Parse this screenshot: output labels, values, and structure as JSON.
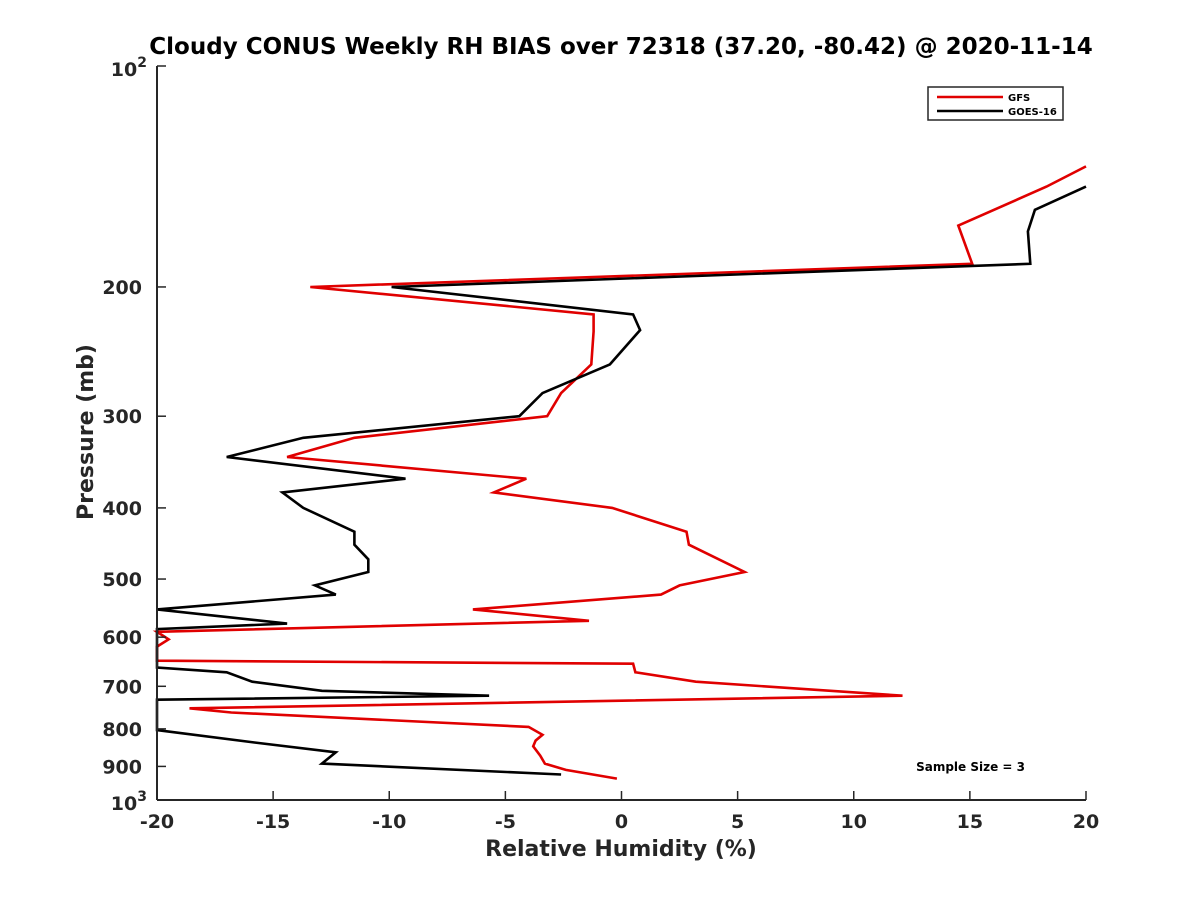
{
  "chart_data": {
    "type": "line",
    "title": "Cloudy CONUS Weekly RH BIAS over 72318 (37.20, -80.42) @ 2020-11-14",
    "xlabel": "Relative Humidity (%)",
    "ylabel": "Pressure (mb)",
    "xlim": [
      -20,
      20
    ],
    "ylim": [
      100,
      1000
    ],
    "yscale": "log",
    "y_reversed": true,
    "x_ticks": [
      "-20",
      "-15",
      "-10",
      "-5",
      "0",
      "5",
      "10",
      "15",
      "20"
    ],
    "x_tick_values": [
      -20,
      -15,
      -10,
      -5,
      0,
      5,
      10,
      15,
      20
    ],
    "y_ticks": [
      {
        "value": 200,
        "label": "200"
      },
      {
        "value": 300,
        "label": "300"
      },
      {
        "value": 400,
        "label": "400"
      },
      {
        "value": 500,
        "label": "500"
      },
      {
        "value": 600,
        "label": "600"
      },
      {
        "value": 700,
        "label": "700"
      },
      {
        "value": 800,
        "label": "800"
      },
      {
        "value": 900,
        "label": "900"
      }
    ],
    "y_end_labels": [
      {
        "value": 100,
        "base": "10",
        "exp": "2"
      },
      {
        "value": 1000,
        "base": "10",
        "exp": "3"
      }
    ],
    "legend": {
      "position": "top-right"
    },
    "annotation": "Sample Size = 3",
    "series": [
      {
        "name": "GFS",
        "color": "#e00000",
        "points": [
          [
            20,
            137
          ],
          [
            18.3,
            146
          ],
          [
            14.5,
            165
          ],
          [
            15.1,
            186
          ],
          [
            -13.4,
            200
          ],
          [
            -1.2,
            218
          ],
          [
            -1.2,
            230
          ],
          [
            -1.3,
            255
          ],
          [
            -2.6,
            279
          ],
          [
            -3.2,
            300
          ],
          [
            -11.5,
            321
          ],
          [
            -14.4,
            341
          ],
          [
            -4.1,
            365
          ],
          [
            -5.5,
            381
          ],
          [
            -0.4,
            400
          ],
          [
            2.8,
            431
          ],
          [
            2.9,
            449
          ],
          [
            5.3,
            489
          ],
          [
            2.5,
            510
          ],
          [
            1.7,
            525
          ],
          [
            -6.4,
            550
          ],
          [
            -1.4,
            570
          ],
          [
            -20,
            590
          ],
          [
            -19.5,
            604
          ],
          [
            -20,
            618
          ],
          [
            -20,
            646
          ],
          [
            0.5,
            652
          ],
          [
            0.6,
            670
          ],
          [
            3.2,
            690
          ],
          [
            12.1,
            721
          ],
          [
            -18.6,
            750
          ],
          [
            -16.8,
            760
          ],
          [
            -4.0,
            795
          ],
          [
            -3.4,
            815
          ],
          [
            -3.7,
            830
          ],
          [
            -3.8,
            845
          ],
          [
            -3.5,
            870
          ],
          [
            -3.3,
            892
          ],
          [
            -2.4,
            910
          ],
          [
            -0.2,
            935
          ]
        ]
      },
      {
        "name": "GOES-16",
        "color": "#000000",
        "points": [
          [
            20,
            146
          ],
          [
            17.8,
            157
          ],
          [
            17.5,
            168
          ],
          [
            17.6,
            186
          ],
          [
            -9.9,
            200
          ],
          [
            0.5,
            218
          ],
          [
            0.8,
            229
          ],
          [
            -0.5,
            255
          ],
          [
            -3.4,
            279
          ],
          [
            -4.4,
            300
          ],
          [
            -13.7,
            321
          ],
          [
            -17.0,
            341
          ],
          [
            -9.3,
            365
          ],
          [
            -14.6,
            381
          ],
          [
            -13.7,
            400
          ],
          [
            -11.5,
            431
          ],
          [
            -11.5,
            449
          ],
          [
            -10.9,
            470
          ],
          [
            -10.9,
            489
          ],
          [
            -13.2,
            510
          ],
          [
            -12.3,
            525
          ],
          [
            -20,
            550
          ],
          [
            -14.4,
            575
          ],
          [
            -20,
            585
          ],
          [
            -20,
            660
          ],
          [
            -17.0,
            670
          ],
          [
            -15.9,
            690
          ],
          [
            -12.9,
            710
          ],
          [
            -5.7,
            721
          ],
          [
            -20,
            730
          ],
          [
            -20,
            803
          ],
          [
            -15.8,
            835
          ],
          [
            -12.3,
            861
          ],
          [
            -12.9,
            892
          ],
          [
            -2.6,
            923
          ]
        ]
      }
    ]
  }
}
